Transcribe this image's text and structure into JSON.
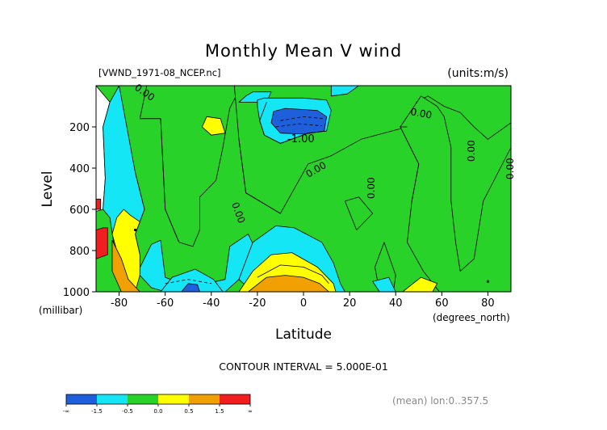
{
  "chart_data": {
    "type": "heatmap",
    "title": "Monthly Mean V wind",
    "source_label": "[VWND_1971-08_NCEP.nc]",
    "units_label": "(units:m/s)",
    "xlabel": "Latitude",
    "x_units": "(degrees_north)",
    "ylabel": "Level",
    "y_units": "(millibar)",
    "xlim": [
      -90,
      90
    ],
    "ylim": [
      0,
      1000
    ],
    "y_inverted": true,
    "x_ticks": [
      -80,
      -60,
      -40,
      -20,
      0,
      20,
      40,
      60,
      80
    ],
    "y_ticks": [
      200,
      400,
      600,
      800,
      1000
    ],
    "contour_interval_text": "CONTOUR INTERVAL = 5.000E-01",
    "contour_labels": [
      "0.00",
      "-1.00"
    ],
    "footer_note": "(mean) lon:0..357.5",
    "colorbar": {
      "colors": [
        "#1e5fdc",
        "#14e6f5",
        "#28d228",
        "#ffff00",
        "#f0a000",
        "#f01e1e"
      ],
      "labels": [
        "-∞",
        "-1.5",
        "-0.5",
        "0.0",
        "0.5",
        "1.5",
        "∞"
      ]
    },
    "regions": [
      {
        "level": 2,
        "points": [
          [
            -90,
            1000
          ],
          [
            -90,
            610
          ],
          [
            -87,
            600
          ],
          [
            -86,
            450
          ],
          [
            -87,
            200
          ],
          [
            -84,
            80
          ],
          [
            -90,
            0
          ],
          [
            90,
            0
          ],
          [
            90,
            1000
          ]
        ]
      },
      {
        "level": 1,
        "points": [
          [
            -87,
            200
          ],
          [
            -86,
            450
          ],
          [
            -87,
            600
          ],
          [
            -84,
            640
          ],
          [
            -81,
            860
          ],
          [
            -79,
            940
          ],
          [
            -73,
            930
          ],
          [
            -66,
            770
          ],
          [
            -62,
            750
          ],
          [
            -60,
            930
          ],
          [
            -53,
            960
          ],
          [
            -47,
            920
          ],
          [
            -42,
            960
          ],
          [
            -34,
            940
          ],
          [
            -32,
            780
          ],
          [
            -24,
            720
          ],
          [
            -21,
            790
          ],
          [
            -28,
            940
          ],
          [
            -34,
            1000
          ],
          [
            -45,
            1000
          ],
          [
            -55,
            1000
          ],
          [
            -60,
            1000
          ],
          [
            -66,
            980
          ],
          [
            -71,
            920
          ],
          [
            -71,
            820
          ],
          [
            -73,
            720
          ],
          [
            -71,
            660
          ],
          [
            -69,
            600
          ],
          [
            -73,
            420
          ],
          [
            -80,
            0
          ],
          [
            -84,
            80
          ]
        ]
      },
      {
        "level": 3,
        "points": [
          [
            -73,
            1000
          ],
          [
            -77,
            960
          ],
          [
            -83,
            720
          ],
          [
            -81,
            640
          ],
          [
            -78,
            600
          ],
          [
            -75,
            630
          ],
          [
            -71,
            660
          ],
          [
            -73,
            720
          ],
          [
            -71,
            820
          ],
          [
            -71,
            920
          ]
        ]
      },
      {
        "level": 4,
        "points": [
          [
            -79,
            1000
          ],
          [
            -83,
            900
          ],
          [
            -83,
            750
          ],
          [
            -79,
            840
          ],
          [
            -76,
            940
          ],
          [
            -71,
            1000
          ]
        ]
      },
      {
        "level": 2,
        "points": [
          [
            -71,
            160
          ],
          [
            -62,
            160
          ],
          [
            -60,
            600
          ],
          [
            -54,
            760
          ],
          [
            -48,
            780
          ],
          [
            -45,
            700
          ],
          [
            -45,
            540
          ],
          [
            -38,
            460
          ],
          [
            -35,
            300
          ],
          [
            -32,
            110
          ],
          [
            -27,
            0
          ],
          [
            -68,
            0
          ]
        ]
      },
      {
        "level": 2,
        "points": [
          [
            -30,
            0
          ],
          [
            -28,
            260
          ],
          [
            -25,
            520
          ],
          [
            -10,
            620
          ],
          [
            2,
            380
          ],
          [
            12,
            340
          ],
          [
            25,
            260
          ],
          [
            45,
            200
          ],
          [
            49,
            80
          ],
          [
            54,
            50
          ],
          [
            61,
            100
          ],
          [
            68,
            130
          ],
          [
            74,
            200
          ],
          [
            80,
            260
          ],
          [
            90,
            180
          ],
          [
            90,
            0
          ]
        ]
      },
      {
        "level": 2,
        "points": [
          [
            51,
            50
          ],
          [
            42,
            200
          ],
          [
            50,
            380
          ],
          [
            47,
            560
          ],
          [
            45,
            760
          ],
          [
            52,
            900
          ],
          [
            59,
            1000
          ],
          [
            90,
            1000
          ],
          [
            90,
            300
          ],
          [
            78,
            560
          ],
          [
            74,
            840
          ],
          [
            68,
            900
          ],
          [
            66,
            760
          ],
          [
            64,
            560
          ],
          [
            64,
            300
          ],
          [
            61,
            150
          ],
          [
            58,
            100
          ]
        ]
      },
      {
        "level": 2,
        "points": [
          [
            35,
            760
          ],
          [
            31,
            880
          ],
          [
            33,
            1000
          ],
          [
            39,
            1000
          ],
          [
            40,
            920
          ]
        ]
      },
      {
        "level": 2,
        "points": [
          [
            24,
            540
          ],
          [
            18,
            560
          ],
          [
            23,
            700
          ],
          [
            30,
            620
          ]
        ]
      },
      {
        "level": 1,
        "points": [
          [
            -22,
            1000
          ],
          [
            -28,
            940
          ],
          [
            -22,
            760
          ],
          [
            -12,
            680
          ],
          [
            -4,
            690
          ],
          [
            8,
            760
          ],
          [
            13,
            860
          ],
          [
            16,
            960
          ],
          [
            18,
            1000
          ]
        ]
      },
      {
        "level": 3,
        "points": [
          [
            -28,
            1000
          ],
          [
            -22,
            900
          ],
          [
            -14,
            820
          ],
          [
            -5,
            810
          ],
          [
            6,
            880
          ],
          [
            13,
            960
          ],
          [
            14,
            1000
          ]
        ]
      },
      {
        "level": 4,
        "points": [
          [
            -24,
            1000
          ],
          [
            -16,
            930
          ],
          [
            -8,
            920
          ],
          [
            0,
            930
          ],
          [
            7,
            960
          ],
          [
            11,
            1000
          ]
        ]
      },
      {
        "level": 1,
        "points": [
          [
            -25,
            50
          ],
          [
            -22,
            30
          ],
          [
            -14,
            30
          ],
          [
            -16,
            80
          ],
          [
            -28,
            80
          ]
        ]
      },
      {
        "level": 1,
        "points": [
          [
            12,
            50
          ],
          [
            12,
            0
          ],
          [
            24,
            0
          ],
          [
            19,
            40
          ]
        ]
      },
      {
        "level": 1,
        "points": [
          [
            33,
            1000
          ],
          [
            30,
            950
          ],
          [
            37,
            930
          ],
          [
            40,
            1000
          ]
        ]
      },
      {
        "level": 3,
        "points": [
          [
            -40,
            240
          ],
          [
            -44,
            200
          ],
          [
            -42,
            150
          ],
          [
            -36,
            160
          ],
          [
            -34,
            230
          ]
        ]
      },
      {
        "level": 3,
        "points": [
          [
            43,
            1000
          ],
          [
            51,
            930
          ],
          [
            58,
            960
          ],
          [
            56,
            1000
          ]
        ]
      },
      {
        "level": 1,
        "points": [
          [
            -62,
            1000
          ],
          [
            -57,
            930
          ],
          [
            -47,
            890
          ],
          [
            -39,
            940
          ],
          [
            -35,
            1000
          ]
        ]
      },
      {
        "level": 0,
        "points": [
          [
            -53,
            1000
          ],
          [
            -50,
            960
          ],
          [
            -46,
            965
          ],
          [
            -45,
            1000
          ]
        ]
      },
      {
        "level": 1,
        "points": [
          [
            -20,
            100
          ],
          [
            -20,
            70
          ],
          [
            -17,
            60
          ],
          [
            0,
            60
          ],
          [
            10,
            70
          ],
          [
            12,
            120
          ],
          [
            10,
            220
          ],
          [
            2,
            230
          ],
          [
            -10,
            280
          ],
          [
            -17,
            240
          ],
          [
            -19,
            170
          ]
        ]
      },
      {
        "level": 0,
        "points": [
          [
            -14,
            180
          ],
          [
            -13,
            125
          ],
          [
            -8,
            110
          ],
          [
            6,
            120
          ],
          [
            10,
            150
          ],
          [
            9,
            220
          ],
          [
            0,
            235
          ],
          [
            -10,
            230
          ]
        ]
      },
      {
        "level": 5,
        "points": [
          [
            -90,
            840
          ],
          [
            -85,
            820
          ],
          [
            -85,
            690
          ],
          [
            -87,
            690
          ],
          [
            -90,
            700
          ]
        ]
      },
      {
        "level": 5,
        "points": [
          [
            -90,
            600
          ],
          [
            -88,
            600
          ],
          [
            -88,
            550
          ],
          [
            -90,
            550
          ]
        ]
      }
    ],
    "lines": [
      {
        "points": [
          [
            -73,
            420
          ],
          [
            -69,
            600
          ],
          [
            -71,
            660
          ]
        ],
        "dashed": false
      },
      {
        "points": [
          [
            -62,
            160
          ],
          [
            -60,
            600
          ],
          [
            -54,
            760
          ]
        ],
        "dashed": false
      },
      {
        "points": [
          [
            -28,
            260
          ],
          [
            -25,
            520
          ],
          [
            -10,
            620
          ]
        ],
        "dashed": false
      },
      {
        "points": [
          [
            45,
            200
          ],
          [
            42,
            200
          ],
          [
            50,
            380
          ],
          [
            47,
            560
          ]
        ],
        "dashed": false
      },
      {
        "points": [
          [
            -16,
            80
          ],
          [
            -19,
            170
          ],
          [
            -17,
            240
          ],
          [
            -10,
            280
          ],
          [
            2,
            230
          ],
          [
            10,
            220
          ]
        ],
        "dashed": false
      },
      {
        "points": [
          [
            -20,
            930
          ],
          [
            -10,
            870
          ],
          [
            0,
            880
          ],
          [
            8,
            920
          ],
          [
            11,
            960
          ]
        ],
        "dashed": false
      },
      {
        "points": [
          [
            -12,
            200
          ],
          [
            -2,
            185
          ],
          [
            8,
            195
          ]
        ],
        "dashed": true
      },
      {
        "points": [
          [
            -60,
            960
          ],
          [
            -50,
            940
          ],
          [
            -40,
            960
          ]
        ],
        "dashed": true
      },
      {
        "points": [
          [
            -10,
            170
          ],
          [
            0,
            150
          ],
          [
            9,
            160
          ]
        ],
        "dashed": true
      }
    ],
    "markers": [
      {
        "x": -73,
        "y": 700
      },
      {
        "x": 80,
        "y": 950
      }
    ]
  }
}
